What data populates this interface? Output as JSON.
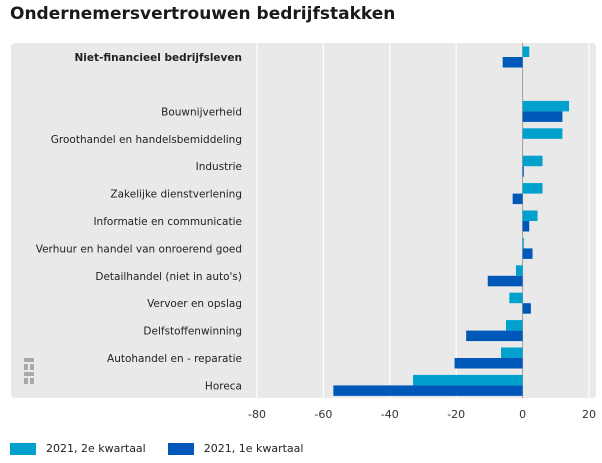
{
  "title": "Ondernemersvertrouwen bedrijfstakken",
  "colors": {
    "series1": "#00a1cd",
    "series2": "#0058b8",
    "panel": "#e9e9e9",
    "grid": "#ffffff"
  },
  "legend": [
    {
      "label": "2021, 2e kwartaal",
      "color": "#00a1cd"
    },
    {
      "label": "2021, 1e kwartaal",
      "color": "#0058b8"
    }
  ],
  "chart_data": {
    "type": "bar",
    "orientation": "horizontal",
    "xlim": [
      -80,
      20
    ],
    "xticks": [
      "-80",
      "-60",
      "-40",
      "-20",
      "0",
      "20"
    ],
    "grid": true,
    "legend_position": "bottom-left",
    "categories": [
      "Niet-financieel bedrijfsleven",
      "Bouwnijverheid",
      "Groothandel en handelsbemiddeling",
      "Industrie",
      "Zakelijke dienstverlening",
      "Informatie en communicatie",
      "Verhuur en handel van onroerend goed",
      "Detailhandel (niet in auto's)",
      "Vervoer en opslag",
      "Delfstoffenwinning",
      "Autohandel en - reparatie",
      "Horeca"
    ],
    "series": [
      {
        "name": "2021, 2e kwartaal",
        "values": [
          2,
          14,
          12,
          6,
          6,
          4.5,
          0,
          -2,
          -4,
          -5,
          -6.5,
          -33
        ]
      },
      {
        "name": "2021, 1e kwartaal",
        "values": [
          -6,
          12,
          null,
          0,
          -3,
          2,
          3,
          -10.5,
          2.5,
          -17,
          -20.5,
          -57
        ]
      }
    ]
  }
}
